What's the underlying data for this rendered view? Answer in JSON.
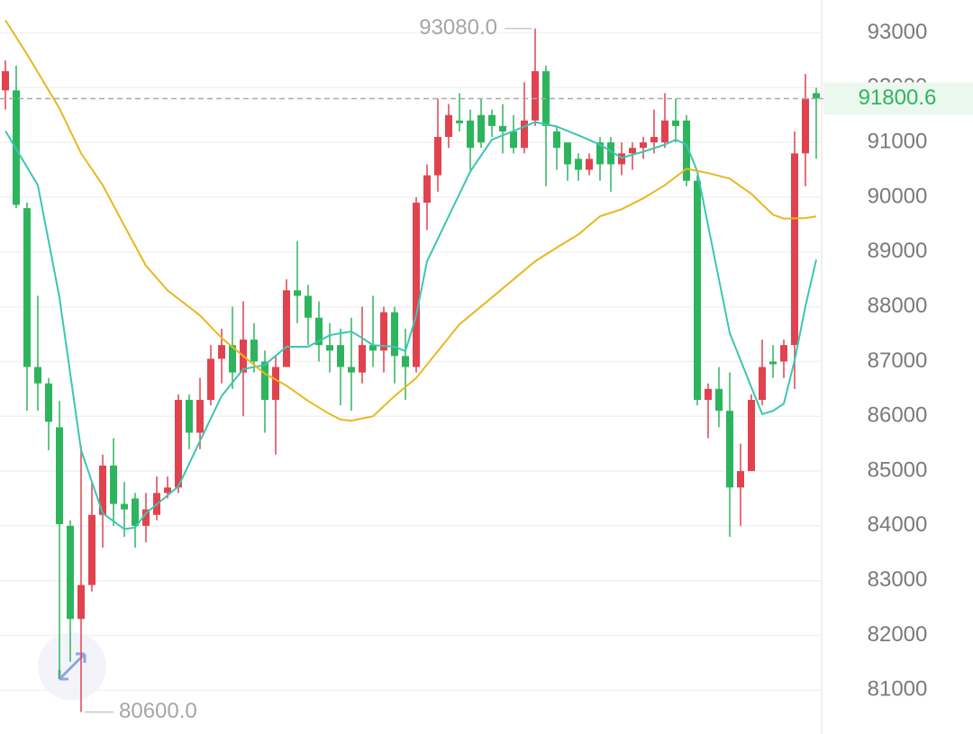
{
  "chart_data": {
    "type": "candlestick",
    "up_color": "#e0434f",
    "down_color": "#2db55d",
    "open": [
      91950,
      91950,
      89800,
      86900,
      86600,
      85800,
      84000,
      82300,
      82920,
      84200,
      85100,
      84400,
      84500,
      84000,
      84200,
      84600,
      84700,
      86300,
      85700,
      86300,
      87050,
      87300,
      86800,
      87400,
      87000,
      86300,
      86900,
      88300,
      88200,
      87800,
      87300,
      87300,
      86900,
      86800,
      87300,
      87200,
      87900,
      87100,
      86900,
      89900,
      90400,
      91100,
      91400,
      91400,
      91500,
      91500,
      91300,
      91200,
      90900,
      91400,
      92300,
      91200,
      91000,
      90700,
      90500,
      91000,
      91000,
      90600,
      90800,
      90900,
      91000,
      91000,
      91400,
      91400,
      90300,
      86300,
      86500,
      86100,
      84700,
      85000,
      86300,
      87000,
      87000,
      87300,
      90800,
      91900
    ],
    "high": [
      92500,
      92400,
      89900,
      88200,
      86700,
      86280,
      84100,
      85460,
      84800,
      85300,
      85600,
      84800,
      84600,
      84600,
      84900,
      84900,
      86400,
      86400,
      86700,
      87300,
      87600,
      88000,
      88100,
      87700,
      87200,
      87100,
      88500,
      89200,
      88400,
      88100,
      87700,
      87600,
      87800,
      88000,
      88200,
      88000,
      88000,
      87600,
      90000,
      90600,
      91800,
      91700,
      91900,
      91600,
      91800,
      91600,
      91700,
      91500,
      92100,
      93080,
      92400,
      91300,
      91000,
      90800,
      90800,
      91100,
      91100,
      91000,
      91000,
      91100,
      91600,
      91900,
      91800,
      91500,
      90400,
      86600,
      86900,
      86800,
      85500,
      86400,
      87400,
      87300,
      87400,
      91200,
      92250,
      92000
    ],
    "low": [
      91600,
      89800,
      86100,
      86100,
      85380,
      81200,
      81520,
      80600,
      82800,
      83600,
      84000,
      83800,
      83600,
      83700,
      84100,
      84500,
      84600,
      85400,
      85400,
      86200,
      86600,
      86500,
      86000,
      86800,
      85700,
      85300,
      86900,
      87700,
      87300,
      87000,
      86800,
      86200,
      86100,
      86600,
      86900,
      86800,
      86600,
      86300,
      86800,
      89400,
      90100,
      90900,
      91200,
      90500,
      90900,
      91100,
      90800,
      90800,
      90800,
      91300,
      90200,
      90500,
      90300,
      90300,
      90400,
      90300,
      90100,
      90400,
      90500,
      90700,
      90800,
      90900,
      91000,
      90200,
      86200,
      85600,
      85800,
      83800,
      84000,
      85000,
      86200,
      86700,
      86700,
      86500,
      90200,
      90700
    ],
    "close": [
      92300,
      89860,
      86900,
      86600,
      85900,
      84030,
      82300,
      82920,
      84200,
      85100,
      84400,
      84300,
      84000,
      84300,
      84600,
      84700,
      86300,
      85700,
      86300,
      87050,
      87300,
      86800,
      87400,
      87000,
      86300,
      86900,
      88300,
      88200,
      87800,
      87300,
      87200,
      86900,
      86800,
      87300,
      87200,
      87900,
      87100,
      86900,
      89900,
      90400,
      91100,
      91500,
      91350,
      90900,
      91000,
      91300,
      91200,
      90900,
      91400,
      92300,
      91300,
      90900,
      90600,
      90500,
      90700,
      90600,
      90600,
      90800,
      90900,
      91000,
      91100,
      91400,
      91300,
      90300,
      86300,
      86500,
      86100,
      84700,
      85000,
      86300,
      86900,
      86950,
      87300,
      90800,
      91800,
      91800.6
    ],
    "series": [
      {
        "color": "#3cc6b0",
        "x": [
          0,
          3,
          5,
          7,
          9,
          11,
          12,
          13,
          16,
          18,
          20,
          22,
          24,
          26,
          28,
          30,
          32,
          33,
          34,
          36,
          37,
          38,
          39,
          41,
          43,
          45,
          47,
          49,
          51,
          53,
          55,
          57,
          59,
          61,
          62,
          63,
          64,
          65,
          66,
          67,
          69,
          70,
          71,
          72,
          73,
          74,
          75
        ],
        "values": [
          91210,
          90220,
          88170,
          85380,
          84230,
          83940,
          83970,
          84230,
          84720,
          85550,
          86370,
          86860,
          86940,
          87270,
          87270,
          87480,
          87550,
          87430,
          87300,
          87270,
          87190,
          87840,
          88830,
          89650,
          90470,
          91050,
          91210,
          91370,
          91290,
          91130,
          90960,
          90720,
          90830,
          90960,
          91050,
          90960,
          90470,
          89480,
          88500,
          87520,
          86530,
          86040,
          86100,
          86230,
          87020,
          88010,
          88860
        ]
      },
      {
        "color": "#e8b820",
        "x": [
          0,
          2,
          5,
          7,
          9,
          11,
          13,
          15,
          18,
          20,
          22,
          24,
          26,
          28,
          30,
          31,
          32,
          34,
          36,
          38,
          40,
          42,
          45,
          47,
          49,
          51,
          53,
          55,
          57,
          59,
          61,
          63,
          65,
          67,
          69,
          71,
          72,
          74,
          75
        ],
        "values": [
          93230,
          92610,
          91620,
          90800,
          90220,
          89480,
          88750,
          88300,
          87840,
          87430,
          87100,
          86780,
          86560,
          86280,
          86040,
          85940,
          85920,
          86000,
          86370,
          86700,
          87190,
          87680,
          88170,
          88500,
          88830,
          89080,
          89320,
          89650,
          89780,
          89980,
          90220,
          90520,
          90440,
          90340,
          90060,
          89680,
          89610,
          89620,
          89650
        ]
      }
    ],
    "ylim": [
      80200,
      93600
    ],
    "yticks": [
      81000,
      82000,
      83000,
      84000,
      85000,
      86000,
      87000,
      88000,
      89000,
      90000,
      91000,
      92000,
      93000
    ],
    "grid": true,
    "last_price": 91800.6,
    "high_annotation": {
      "value": 93080,
      "label": "93080.0"
    },
    "low_annotation": {
      "value": 80600,
      "label": "80600.0"
    }
  }
}
